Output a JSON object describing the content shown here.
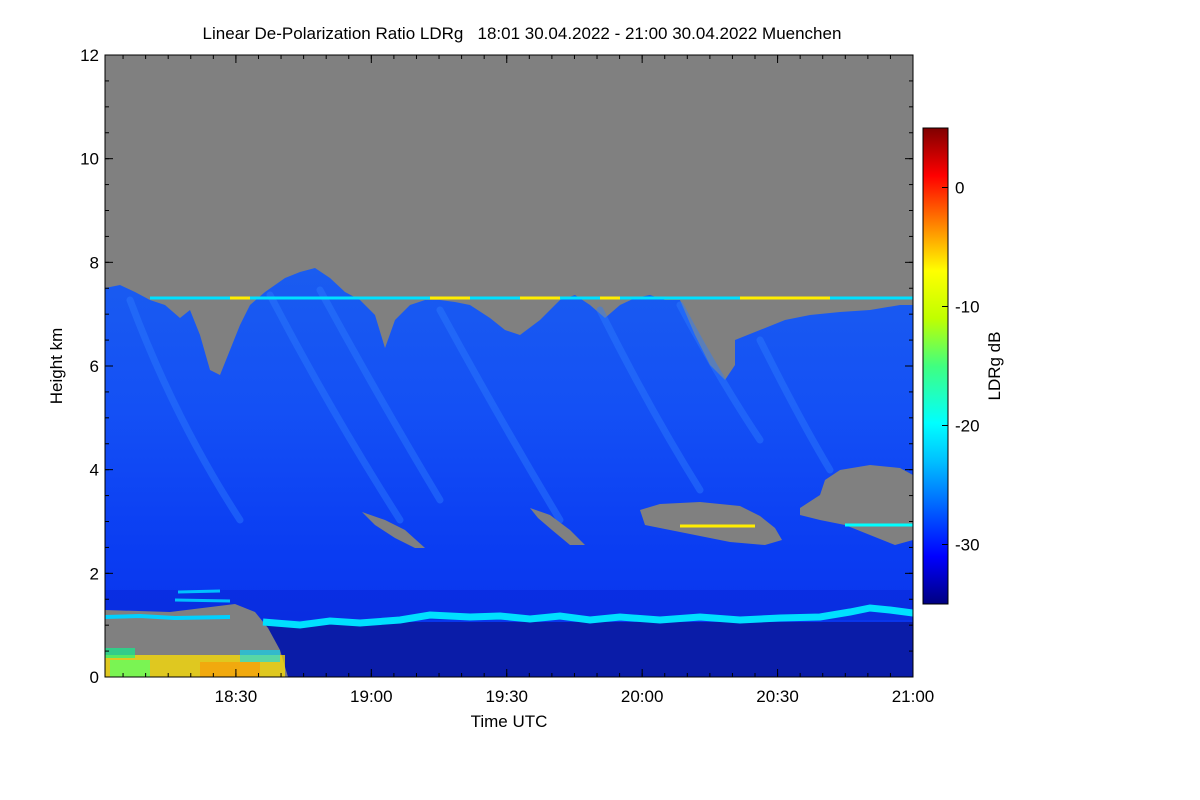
{
  "chart_data": {
    "type": "heatmap",
    "title": "Linear De-Polarization Ratio LDRg   18:01 30.04.2022 - 21:00 30.04.2022 Muenchen",
    "xlabel": "Time UTC",
    "ylabel": "Height km",
    "colorbar_label": "LDRg dB",
    "x_range_minutes_utc": [
      1081,
      1260
    ],
    "y_range_km": [
      0,
      12
    ],
    "x_ticks": [
      {
        "value": 1110,
        "label": "18:30"
      },
      {
        "value": 1140,
        "label": "19:00"
      },
      {
        "value": 1170,
        "label": "19:30"
      },
      {
        "value": 1200,
        "label": "20:00"
      },
      {
        "value": 1230,
        "label": "20:30"
      },
      {
        "value": 1260,
        "label": "21:00"
      }
    ],
    "y_ticks": [
      0,
      2,
      4,
      6,
      8,
      10,
      12
    ],
    "colorbar_range_db": [
      -35,
      5
    ],
    "colorbar_ticks": [
      0,
      -10,
      -20,
      -30
    ],
    "colormap": [
      "#000080",
      "#0000ff",
      "#0060ff",
      "#00c0ff",
      "#00ffff",
      "#40ff80",
      "#c0ff00",
      "#ffff00",
      "#ff8000",
      "#ff0000",
      "#800000"
    ],
    "no_signal_color": "#808080",
    "features": [
      {
        "name": "cirrus",
        "t_start": 1081,
        "t_end": 1260,
        "top_km_approx": 7.5,
        "ldr_db_approx": -30
      },
      {
        "name": "boundary layer line",
        "t_start": 1081,
        "t_end": 1260,
        "height_km_approx": 1.1,
        "ldr_db_approx": -22
      },
      {
        "name": "thin layer",
        "t_start": 1091,
        "t_end": 1260,
        "height_km_approx": 7.3,
        "ldr_db_approx": -10
      }
    ]
  }
}
